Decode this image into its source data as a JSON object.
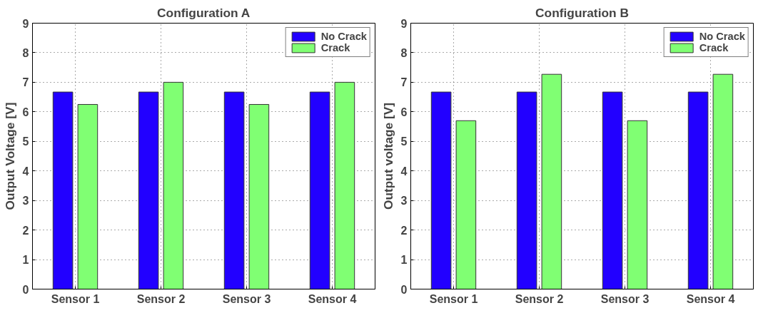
{
  "chart_data": [
    {
      "type": "bar",
      "title": "Configuration A",
      "ylabel": "Output Voltage [V]",
      "categories": [
        "Sensor 1",
        "Sensor 2",
        "Sensor 3",
        "Sensor 4"
      ],
      "series": [
        {
          "name": "No Crack",
          "color": "#2200ff",
          "values": [
            6.67,
            6.67,
            6.67,
            6.67
          ]
        },
        {
          "name": "Crack",
          "color": "#80ff73",
          "values": [
            6.25,
            7.0,
            6.25,
            7.0
          ]
        }
      ],
      "ylim": [
        0,
        9
      ],
      "yticks": [
        0,
        1,
        2,
        3,
        4,
        5,
        6,
        7,
        8,
        9
      ],
      "grid": true,
      "legend": "top right"
    },
    {
      "type": "bar",
      "title": "Configuration B",
      "ylabel": "Output voltage [V]",
      "categories": [
        "Sensor 1",
        "Sensor 2",
        "Sensor 3",
        "Sensor 4"
      ],
      "series": [
        {
          "name": "No Crack",
          "color": "#2200ff",
          "values": [
            6.67,
            6.67,
            6.67,
            6.67
          ]
        },
        {
          "name": "Crack",
          "color": "#80ff73",
          "values": [
            5.7,
            7.27,
            5.7,
            7.27
          ]
        }
      ],
      "ylim": [
        0,
        9
      ],
      "yticks": [
        0,
        1,
        2,
        3,
        4,
        5,
        6,
        7,
        8,
        9
      ],
      "grid": true,
      "legend": "top right"
    }
  ]
}
